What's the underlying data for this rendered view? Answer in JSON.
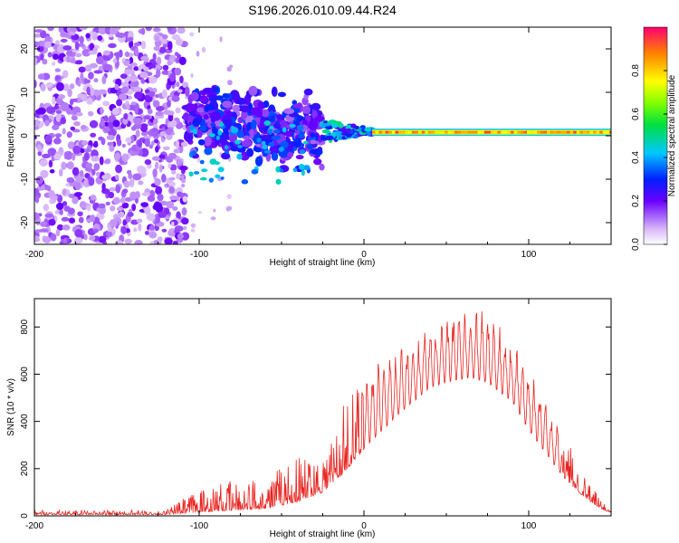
{
  "title": "S196.2026.010.09.44.R24",
  "chart_data": [
    {
      "type": "heatmap",
      "xlabel": "Height of straight line (km)",
      "ylabel": "Frequency (Hz)",
      "xlim": [
        -200,
        150
      ],
      "ylim": [
        -25,
        25
      ],
      "x_ticks": [
        -200,
        -100,
        0,
        100
      ],
      "x_tick_labels": [
        "-200",
        "-100",
        "0",
        "100"
      ],
      "y_ticks": [
        20,
        10,
        0,
        -10,
        -20
      ],
      "y_tick_labels": [
        "20",
        "10",
        "0",
        "-10",
        "-20"
      ],
      "colorbar": {
        "label": "Normalized spectral amplitude",
        "range": [
          0,
          1
        ],
        "ticks": [
          0.0,
          0.2,
          0.4,
          0.6,
          0.8
        ],
        "tick_labels": [
          "0.0",
          "0.2",
          "0.4",
          "0.6",
          "0.8"
        ]
      },
      "regions": [
        {
          "name": "noise-field",
          "x_range": [
            -200,
            -108
          ],
          "freq_range": [
            -25,
            25
          ],
          "amplitude": [
            0.05,
            0.2
          ]
        },
        {
          "name": "scattered-clusters",
          "x_range": [
            -108,
            -25
          ],
          "freq_range": [
            -15,
            12
          ],
          "amplitude": [
            0.1,
            0.45
          ]
        },
        {
          "name": "converging-band",
          "x_range": [
            -25,
            5
          ],
          "freq_range": [
            -2,
            5
          ],
          "amplitude": [
            0.2,
            0.6
          ]
        },
        {
          "name": "steady-band",
          "x_range": [
            5,
            150
          ],
          "freq": 0.8,
          "amplitude": [
            0.7,
            0.95
          ]
        }
      ]
    },
    {
      "type": "line",
      "xlabel": "Height of straight line (km)",
      "ylabel": "SNR (10 * v/v)",
      "xlim": [
        -200,
        150
      ],
      "ylim": [
        0,
        920
      ],
      "x_ticks": [
        -200,
        -100,
        0,
        100
      ],
      "x_tick_labels": [
        "-200",
        "-100",
        "0",
        "100"
      ],
      "y_ticks": [
        0,
        200,
        400,
        600,
        800
      ],
      "y_tick_labels": [
        "0",
        "200",
        "400",
        "600",
        "800"
      ],
      "color": "#e8231f",
      "envelope": {
        "x": [
          -200,
          -120,
          -100,
          -60,
          -40,
          -25,
          -15,
          0,
          20,
          40,
          55,
          65,
          75,
          90,
          100,
          120,
          135,
          145,
          150
        ],
        "base": [
          5,
          5,
          15,
          30,
          60,
          100,
          160,
          280,
          420,
          540,
          570,
          580,
          560,
          480,
          360,
          170,
          70,
          25,
          15
        ],
        "peak": [
          25,
          25,
          120,
          180,
          260,
          320,
          470,
          620,
          710,
          800,
          880,
          910,
          860,
          760,
          640,
          360,
          160,
          60,
          30
        ]
      }
    }
  ]
}
